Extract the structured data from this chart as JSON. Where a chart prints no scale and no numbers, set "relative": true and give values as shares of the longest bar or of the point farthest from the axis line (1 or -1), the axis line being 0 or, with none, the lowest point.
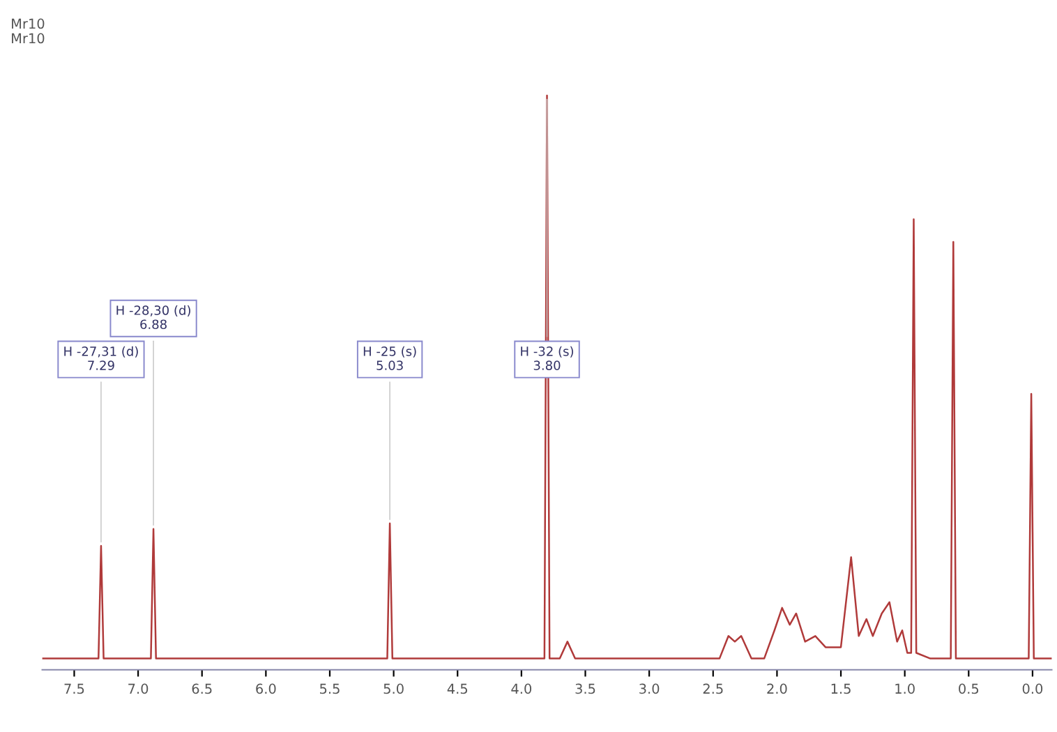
{
  "chart_data": {
    "type": "line",
    "title": "Mr10",
    "subtitle": "Mr10",
    "relative": true,
    "xlim": [
      7.75,
      -0.15
    ],
    "xticks": [
      {
        "value": 7.5,
        "label": "7.5"
      },
      {
        "value": 7,
        "label": "7.0"
      },
      {
        "value": 6.5,
        "label": "6.5"
      },
      {
        "value": 6,
        "label": "6.0"
      },
      {
        "value": 5.5,
        "label": "5.5"
      },
      {
        "value": 5,
        "label": "5.0"
      },
      {
        "value": 4.5,
        "label": "4.5"
      },
      {
        "value": 4,
        "label": "4.0"
      },
      {
        "value": 3.5,
        "label": "3.5"
      },
      {
        "value": 3,
        "label": "3.0"
      },
      {
        "value": 2.5,
        "label": "2.5"
      },
      {
        "value": 2,
        "label": "2.0"
      },
      {
        "value": 1.5,
        "label": "1.5"
      },
      {
        "value": 1,
        "label": "1.0"
      },
      {
        "value": 0.5,
        "label": "0.5"
      },
      {
        "value": 0,
        "label": "0.0"
      }
    ],
    "grid": false,
    "marker": "none",
    "line_style": "solid",
    "series": [
      {
        "color": "#b03a3a",
        "x": [
          7.75,
          7.31,
          7.29,
          7.27,
          6.9,
          6.88,
          6.86,
          5.05,
          5.03,
          5.01,
          3.82,
          3.8,
          3.78,
          3.7,
          3.64,
          3.58,
          2.45,
          2.38,
          2.33,
          2.28,
          2.2,
          2.1,
          2.02,
          1.96,
          1.9,
          1.85,
          1.78,
          1.7,
          1.62,
          1.5,
          1.42,
          1.36,
          1.3,
          1.25,
          1.18,
          1.12,
          1.06,
          1.02,
          0.98,
          0.95,
          0.93,
          0.91,
          0.8,
          0.64,
          0.62,
          0.6,
          0.03,
          0.01,
          -0.01,
          -0.15
        ],
        "values": [
          0,
          0,
          0.2,
          0,
          0,
          0.23,
          0,
          0,
          0.24,
          0,
          0,
          1,
          0,
          0,
          0.03,
          0,
          0,
          0.04,
          0.03,
          0.04,
          0,
          0,
          0.05,
          0.09,
          0.06,
          0.08,
          0.03,
          0.04,
          0.02,
          0.02,
          0.18,
          0.04,
          0.07,
          0.04,
          0.08,
          0.1,
          0.03,
          0.05,
          0.01,
          0.01,
          0.78,
          0.01,
          0,
          0,
          0.74,
          0,
          0,
          0.47,
          0,
          0
        ]
      }
    ],
    "annotations": [
      {
        "text": "H -27,31 (d)\n7.29",
        "x": 7.29,
        "y": 0.2
      },
      {
        "text": "H -28,30 (d)\n6.88",
        "x": 6.88,
        "y": 0.23
      },
      {
        "text": "H -25 (s)\n5.03",
        "x": 5.03,
        "y": 0.24
      },
      {
        "text": "H -32 (s)\n3.80",
        "x": 3.8,
        "y": 1
      }
    ]
  }
}
